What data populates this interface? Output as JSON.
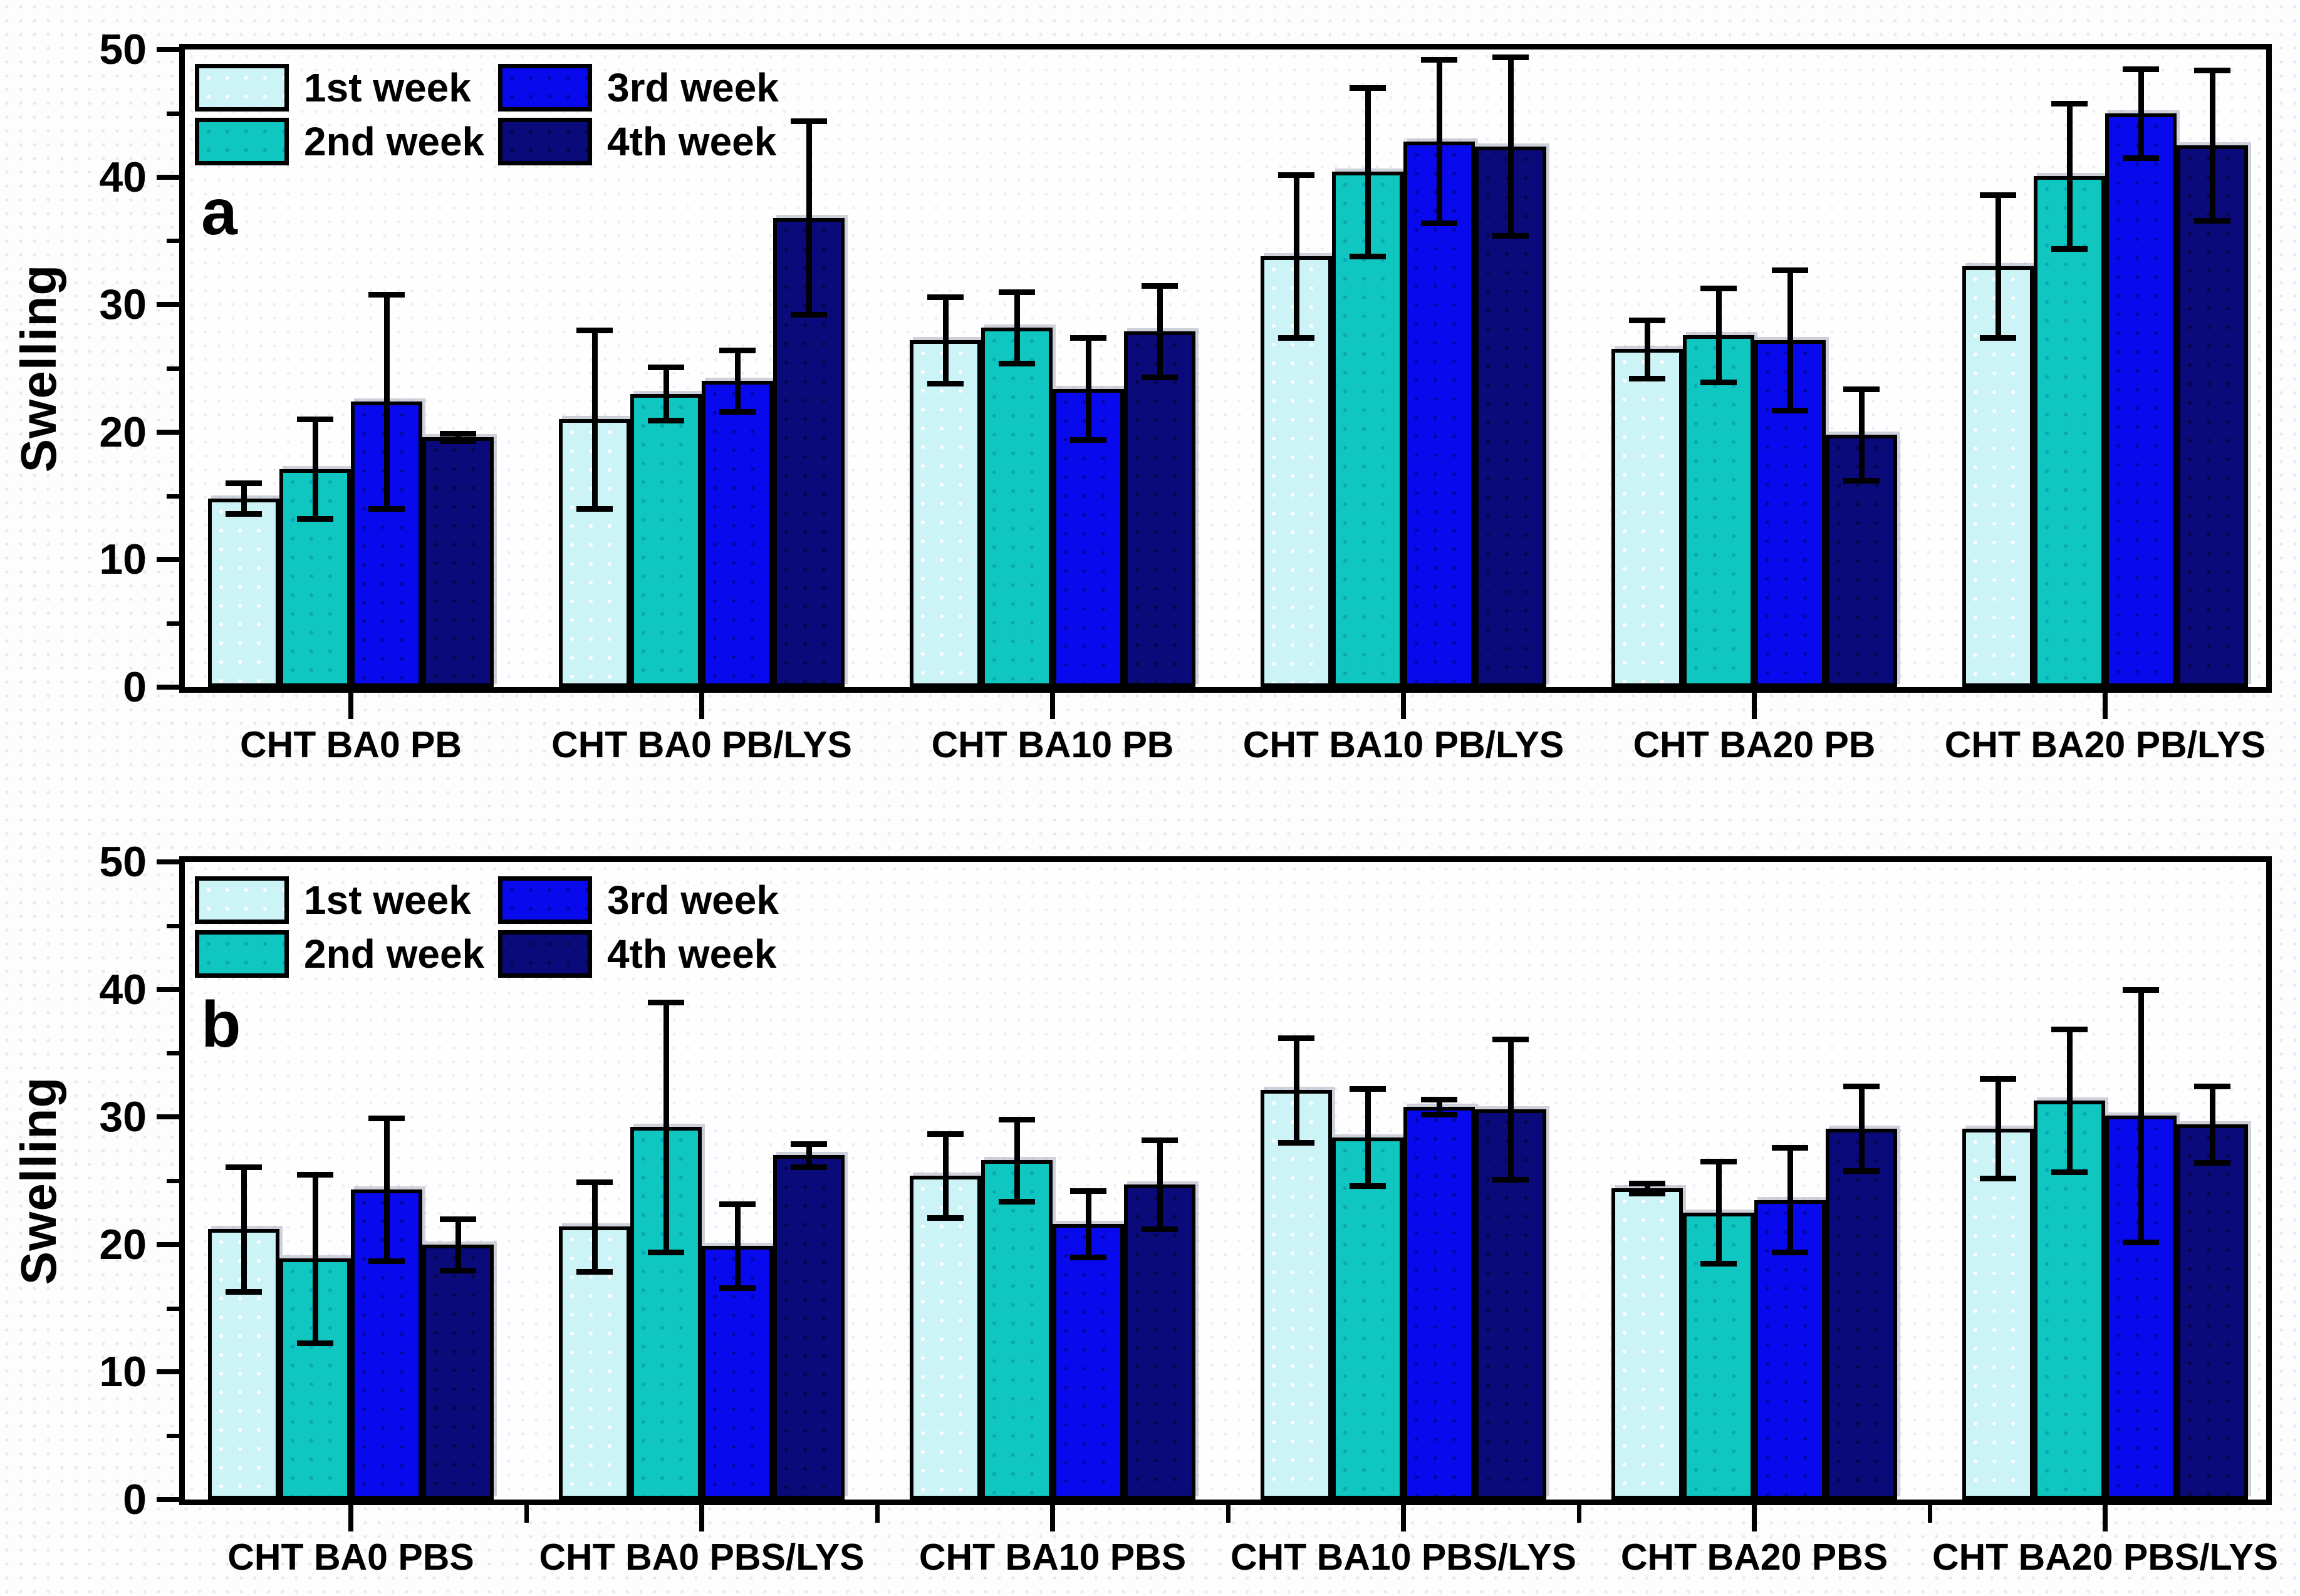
{
  "chart_data": [
    {
      "type": "bar",
      "panel_label": "a",
      "ylabel": "Swelling",
      "ylim": [
        0,
        50
      ],
      "yticks": [
        0,
        10,
        20,
        30,
        40,
        50
      ],
      "ytick_minor_step": 5,
      "grid": false,
      "legend_position": "top-left",
      "minor_x_ticks": false,
      "categories": [
        "CHT BA0 PB",
        "CHT BA0 PB/LYS",
        "CHT BA10 PB",
        "CHT BA10 PB/LYS",
        "CHT BA20 PB",
        "CHT BA20 PB/LYS"
      ],
      "series": [
        {
          "name": "1st week",
          "color": "#ccf3f5",
          "values": [
            14.8,
            21.0,
            27.2,
            33.8,
            26.5,
            33.0
          ],
          "errors": [
            1.2,
            7.0,
            3.4,
            6.4,
            2.3,
            5.6
          ]
        },
        {
          "name": "2nd week",
          "color": "#0fc6c0",
          "values": [
            17.1,
            23.0,
            28.2,
            40.4,
            27.6,
            40.1
          ],
          "errors": [
            3.9,
            2.1,
            2.8,
            6.6,
            3.7,
            5.7
          ]
        },
        {
          "name": "3rd week",
          "color": "#0909ee",
          "values": [
            22.4,
            24.0,
            23.4,
            42.8,
            27.2,
            45.0
          ],
          "errors": [
            8.4,
            2.4,
            4.0,
            6.4,
            5.5,
            3.5
          ]
        },
        {
          "name": "4th week",
          "color": "#0a0a7a",
          "values": [
            19.6,
            36.8,
            27.9,
            42.4,
            19.8,
            42.5
          ],
          "errors": [
            0.3,
            7.6,
            3.6,
            7.0,
            3.6,
            5.9
          ]
        }
      ]
    },
    {
      "type": "bar",
      "panel_label": "b",
      "ylabel": "Swelling",
      "ylim": [
        0,
        50
      ],
      "yticks": [
        0,
        10,
        20,
        30,
        40,
        50
      ],
      "ytick_minor_step": 5,
      "grid": false,
      "legend_position": "top-left",
      "minor_x_ticks": true,
      "categories": [
        "CHT BA0 PBS",
        "CHT BA0 PBS/LYS",
        "CHT BA10 PBS",
        "CHT BA10 PBS/LYS",
        "CHT BA20 PBS",
        "CHT BA20 PBS/LYS"
      ],
      "series": [
        {
          "name": "1st week",
          "color": "#ccf3f5",
          "values": [
            21.2,
            21.4,
            25.4,
            32.1,
            24.4,
            29.1
          ],
          "errors": [
            4.9,
            3.5,
            3.3,
            4.1,
            0.4,
            3.9
          ]
        },
        {
          "name": "2nd week",
          "color": "#0fc6c0",
          "values": [
            18.9,
            29.2,
            26.6,
            28.4,
            22.5,
            31.3
          ],
          "errors": [
            6.6,
            9.8,
            3.2,
            3.8,
            4.0,
            5.6
          ]
        },
        {
          "name": "3rd week",
          "color": "#0909ee",
          "values": [
            24.3,
            19.9,
            21.6,
            30.8,
            23.5,
            30.1
          ],
          "errors": [
            5.6,
            3.3,
            2.6,
            0.6,
            4.1,
            9.9
          ]
        },
        {
          "name": "4th week",
          "color": "#0a0a7a",
          "values": [
            20.0,
            27.0,
            24.7,
            30.6,
            29.1,
            29.4
          ],
          "errors": [
            2.0,
            0.9,
            3.5,
            5.5,
            3.3,
            3.0
          ]
        }
      ]
    }
  ],
  "colors": {
    "series_outline": "#000000",
    "axis": "#000000",
    "week1": "#ccf3f5",
    "week2": "#0fc6c0",
    "week3": "#0909ee",
    "week4": "#0a0a7a"
  }
}
